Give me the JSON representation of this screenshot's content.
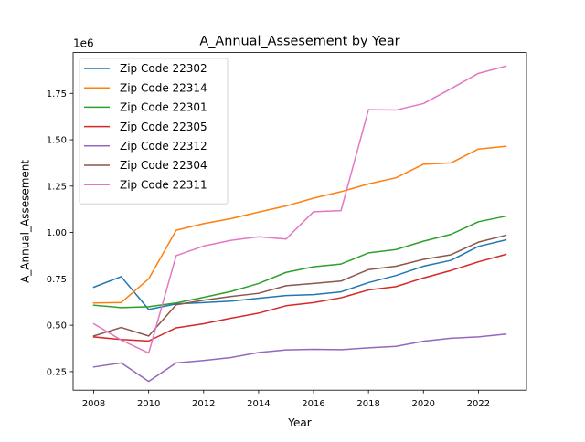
{
  "chart_data": {
    "type": "line",
    "title": "A_Annual_Assesement by Year",
    "xlabel": "Year",
    "ylabel": "A_Annual_Assesement",
    "y_offset_label": "1e6",
    "xlim": [
      2007.25,
      2023.75
    ],
    "ylim": [
      0.15,
      1.97
    ],
    "x_ticks": [
      2008,
      2010,
      2012,
      2014,
      2016,
      2018,
      2020,
      2022
    ],
    "y_ticks": [
      0.25,
      0.5,
      0.75,
      1.0,
      1.25,
      1.5,
      1.75
    ],
    "y_tick_labels": [
      "0.25",
      "0.50",
      "0.75",
      "1.00",
      "1.25",
      "1.50",
      "1.75"
    ],
    "grid": false,
    "legend_position": "top-left",
    "x": [
      2008,
      2009,
      2010,
      2011,
      2012,
      2013,
      2014,
      2015,
      2016,
      2017,
      2018,
      2019,
      2020,
      2021,
      2022,
      2023
    ],
    "series": [
      {
        "name": "Zip Code 22302",
        "color": "#1f77b4",
        "values": [
          0.705,
          0.762,
          0.585,
          0.615,
          0.622,
          0.63,
          0.645,
          0.66,
          0.665,
          0.68,
          0.73,
          0.768,
          0.818,
          0.85,
          0.925,
          0.96
        ]
      },
      {
        "name": "Zip Code 22314",
        "color": "#ff7f0e",
        "values": [
          0.62,
          0.622,
          0.75,
          1.012,
          1.048,
          1.075,
          1.11,
          1.143,
          1.185,
          1.22,
          1.262,
          1.295,
          1.368,
          1.375,
          1.45,
          1.465
        ]
      },
      {
        "name": "Zip Code 22301",
        "color": "#2ca02c",
        "values": [
          0.608,
          0.595,
          0.6,
          0.62,
          0.65,
          0.682,
          0.725,
          0.785,
          0.815,
          0.83,
          0.89,
          0.908,
          0.953,
          0.99,
          1.058,
          1.088
        ]
      },
      {
        "name": "Zip Code 22305",
        "color": "#d62728",
        "values": [
          0.437,
          0.423,
          0.415,
          0.486,
          0.508,
          0.538,
          0.565,
          0.605,
          0.622,
          0.648,
          0.69,
          0.708,
          0.755,
          0.795,
          0.842,
          0.882
        ]
      },
      {
        "name": "Zip Code 22312",
        "color": "#9467bd",
        "values": [
          0.275,
          0.297,
          0.197,
          0.297,
          0.31,
          0.326,
          0.353,
          0.367,
          0.37,
          0.368,
          0.378,
          0.386,
          0.414,
          0.43,
          0.437,
          0.452
        ]
      },
      {
        "name": "Zip Code 22304",
        "color": "#8c564b",
        "values": [
          0.442,
          0.488,
          0.442,
          0.61,
          0.635,
          0.655,
          0.672,
          0.713,
          0.725,
          0.738,
          0.8,
          0.818,
          0.855,
          0.88,
          0.948,
          0.985
        ]
      },
      {
        "name": "Zip Code 22311",
        "color": "#e377c2",
        "values": [
          0.508,
          0.42,
          0.35,
          0.875,
          0.927,
          0.958,
          0.977,
          0.965,
          1.112,
          1.118,
          1.662,
          1.66,
          1.695,
          1.775,
          1.858,
          1.897
        ]
      }
    ]
  }
}
